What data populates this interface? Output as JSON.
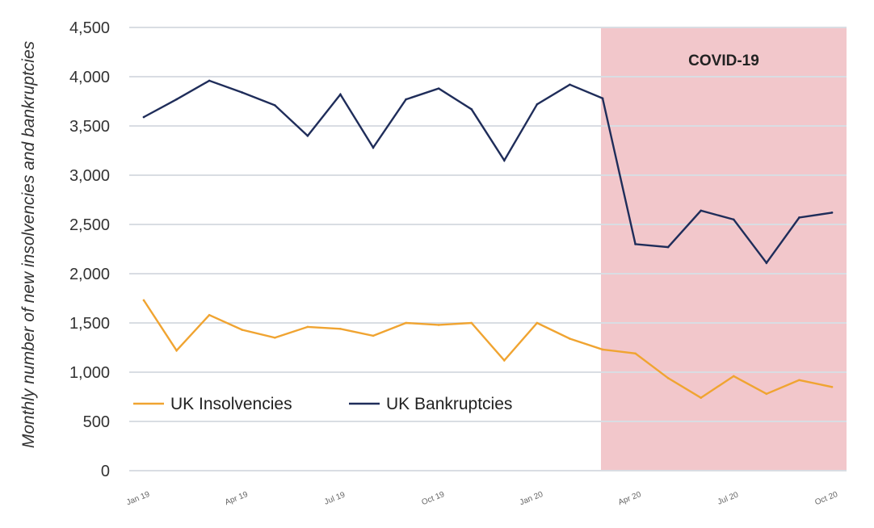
{
  "chart_data": {
    "type": "line",
    "ylabel": "Monthly number of new insolvencies and bankruptcies",
    "ylim": [
      0,
      4500
    ],
    "yticks": [
      0,
      500,
      1000,
      1500,
      2000,
      2500,
      3000,
      3500,
      4000,
      4500
    ],
    "ytick_labels": [
      "0",
      "500",
      "1,000",
      "1,500",
      "2,000",
      "2,500",
      "3,000",
      "3,500",
      "4,000",
      "4,500"
    ],
    "grid": true,
    "legend_position": "bottom-left",
    "categories": [
      "Jan 19",
      "Feb 19",
      "Mar 19",
      "Apr 19",
      "May 19",
      "Jun 19",
      "Jul 19",
      "Aug 19",
      "Sep 19",
      "Oct 19",
      "Nov 19",
      "Dec 19",
      "Jan 20",
      "Feb 20",
      "Mar 20",
      "Apr 20",
      "May 20",
      "Jun 20",
      "Jul 20",
      "Aug 20",
      "Sep 20",
      "Oct 20"
    ],
    "xtick_labels": [
      {
        "index": 0,
        "label": "Jan 19"
      },
      {
        "index": 3,
        "label": "Apr 19"
      },
      {
        "index": 6,
        "label": "Jul 19"
      },
      {
        "index": 9,
        "label": "Oct 19"
      },
      {
        "index": 12,
        "label": "Jan 20"
      },
      {
        "index": 15,
        "label": "Apr 20"
      },
      {
        "index": 18,
        "label": "Jul 20"
      },
      {
        "index": 21,
        "label": "Oct 20"
      }
    ],
    "series": [
      {
        "name": "UK Insolvencies",
        "color": "#f0a431",
        "values": [
          1730,
          1220,
          1580,
          1430,
          1350,
          1460,
          1440,
          1370,
          1500,
          1480,
          1500,
          1120,
          1500,
          1340,
          1230,
          1190,
          940,
          740,
          960,
          780,
          920,
          850
        ]
      },
      {
        "name": "UK Bankruptcies",
        "color": "#1f2d5a",
        "values": [
          3590,
          3770,
          3960,
          3840,
          3710,
          3400,
          3820,
          3280,
          3770,
          3880,
          3670,
          3150,
          3720,
          3920,
          3780,
          2300,
          2270,
          2640,
          2550,
          2110,
          2570,
          2620
        ]
      }
    ],
    "annotations": [
      {
        "label": "COVID-19",
        "x_start": "Mar 20",
        "x_end": "Oct 20",
        "color": "#f2c7cb"
      }
    ]
  }
}
